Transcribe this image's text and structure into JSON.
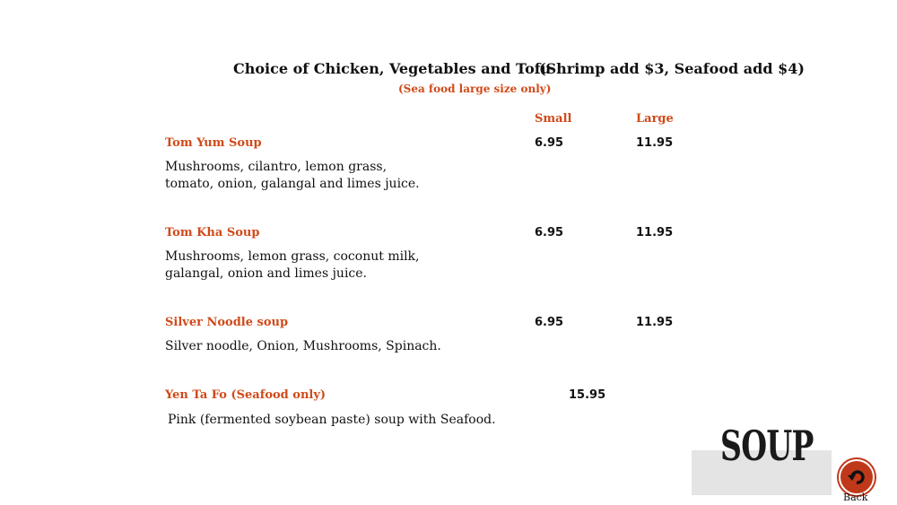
{
  "header": {
    "choice": "Choice of Chicken, Vegetables and Tofu",
    "addons": "(Shrimp add $3, Seafood add $4)",
    "note": "(Sea food large size only)"
  },
  "columns": {
    "small": "Small",
    "large": "Large"
  },
  "items": [
    {
      "name": "Tom Yum Soup",
      "small": "6.95",
      "large": "11.95",
      "desc": "Mushrooms, cilantro, lemon grass, tomato, onion, galangal and limes juice."
    },
    {
      "name": "Tom Kha Soup",
      "small": "6.95",
      "large": "11.95",
      "desc": "Mushrooms, lemon grass, coconut milk, galangal, onion and limes juice."
    },
    {
      "name": "Silver Noodle soup",
      "small": "6.95",
      "large": "11.95",
      "desc": "Silver noodle, Onion, Mushrooms, Spinach."
    },
    {
      "name": "Yen Ta Fo (Seafood only)",
      "price": "15.95",
      "desc": "Pink (fermented soybean paste) soup with Seafood."
    }
  ],
  "section_title": "SOUP",
  "back": {
    "label": "Back",
    "icon": "undo-arrow-icon",
    "color": "#c0381a"
  },
  "colors": {
    "accent": "#d04a1a"
  }
}
